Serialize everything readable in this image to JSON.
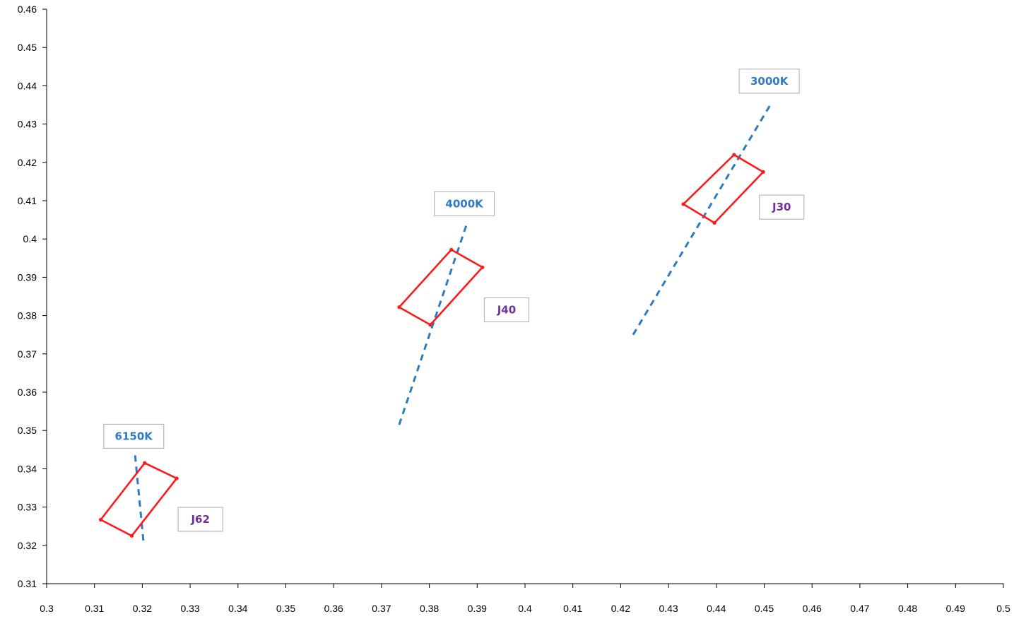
{
  "chart_data": {
    "type": "scatter",
    "title": "",
    "xlabel": "",
    "ylabel": "",
    "xlim": [
      0.3,
      0.5
    ],
    "ylim": [
      0.31,
      0.46
    ],
    "x_ticks": [
      "0.3",
      "0.31",
      "0.32",
      "0.33",
      "0.34",
      "0.35",
      "0.36",
      "0.37",
      "0.38",
      "0.39",
      "0.4",
      "0.41",
      "0.42",
      "0.43",
      "0.44",
      "0.45",
      "0.46",
      "0.47",
      "0.48",
      "0.49",
      "0.5"
    ],
    "y_ticks": [
      "0.31",
      "0.32",
      "0.33",
      "0.34",
      "0.35",
      "0.36",
      "0.37",
      "0.38",
      "0.39",
      "0.4",
      "0.41",
      "0.42",
      "0.43",
      "0.44",
      "0.45",
      "0.46"
    ],
    "grid": false,
    "legend": "none",
    "series": [
      {
        "label": "6150K",
        "style": "dashed",
        "color": "#2E7BC4",
        "label_color": "#2E7BC4",
        "label_anchor": [
          0.3185,
          0.3435
        ],
        "points": [
          [
            0.3185,
            0.3435
          ],
          [
            0.3203,
            0.3203
          ]
        ]
      },
      {
        "label": "4000K",
        "style": "dashed",
        "color": "#2E7BC4",
        "label_color": "#2E7BC4",
        "label_anchor": [
          0.3879,
          0.4042
        ],
        "points": [
          [
            0.3737,
            0.3515
          ],
          [
            0.3879,
            0.4042
          ]
        ]
      },
      {
        "label": "3000K",
        "style": "dashed",
        "color": "#2E7BC4",
        "label_color": "#2E7BC4",
        "label_anchor": [
          0.4515,
          0.4355
        ],
        "points": [
          [
            0.4226,
            0.375
          ],
          [
            0.4515,
            0.4355
          ]
        ]
      },
      {
        "label": "J62",
        "style": "solid",
        "color": "#FF1A1A",
        "label_color": "#7030A0",
        "label_anchor": [
          0.3275,
          0.3268
        ],
        "points": [
          [
            0.3113,
            0.3267
          ],
          [
            0.3205,
            0.3415
          ],
          [
            0.3272,
            0.3375
          ],
          [
            0.3178,
            0.3225
          ],
          [
            0.3113,
            0.3267
          ]
        ]
      },
      {
        "label": "J40",
        "style": "solid",
        "color": "#FF1A1A",
        "label_color": "#7030A0",
        "label_anchor": [
          0.3915,
          0.3815
        ],
        "points": [
          [
            0.3737,
            0.3822
          ],
          [
            0.3846,
            0.3972
          ],
          [
            0.3911,
            0.3926
          ],
          [
            0.3802,
            0.3776
          ],
          [
            0.3737,
            0.3822
          ]
        ]
      },
      {
        "label": "J30",
        "style": "solid",
        "color": "#FF1A1A",
        "label_color": "#7030A0",
        "label_anchor": [
          0.449,
          0.4083
        ],
        "points": [
          [
            0.4331,
            0.4091
          ],
          [
            0.4437,
            0.422
          ],
          [
            0.4498,
            0.4175
          ],
          [
            0.4396,
            0.4042
          ],
          [
            0.4331,
            0.4091
          ]
        ]
      }
    ]
  }
}
